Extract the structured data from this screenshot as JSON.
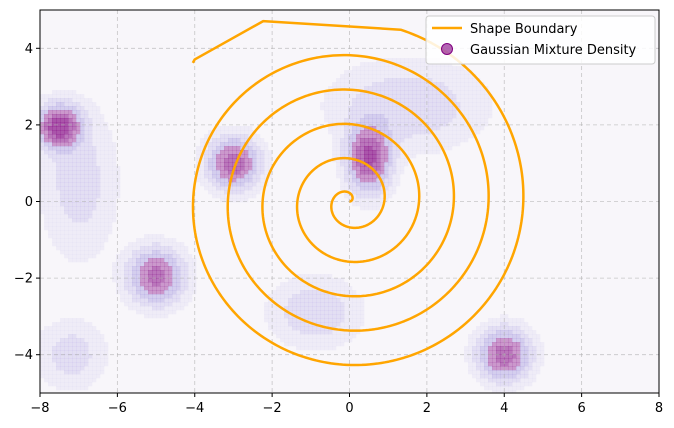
{
  "chart_data": {
    "type": "contour+line",
    "title": "",
    "xlabel": "",
    "ylabel": "",
    "xlim": [
      -8,
      8
    ],
    "ylim": [
      -5,
      5
    ],
    "xticks": [
      -8,
      -6,
      -4,
      -2,
      0,
      2,
      4,
      6,
      8
    ],
    "yticks": [
      -4,
      -2,
      0,
      2,
      4
    ],
    "xtick_labels": [
      "−8",
      "−6",
      "−4",
      "−2",
      "0",
      "2",
      "4",
      "6",
      "8"
    ],
    "ytick_labels": [
      "−4",
      "−2",
      "0",
      "2",
      "4"
    ],
    "grid": true,
    "legend_position": "top-right",
    "series": [
      {
        "name": "Shape Boundary",
        "type": "line",
        "color": "#FFA500",
        "spiral": {
          "center": [
            0,
            0
          ],
          "a": 0.0,
          "b": 0.143,
          "theta_max": 32.7
        },
        "tail": [
          [
            -2.23,
            4.71
          ],
          [
            -4.0,
            3.71
          ],
          [
            -4.05,
            3.62
          ]
        ]
      },
      {
        "name": "Gaussian Mixture Density",
        "type": "contour",
        "color": "#800080",
        "components": [
          {
            "mean": [
              -7.5,
              1.95
            ],
            "sigma": [
              0.35,
              0.35
            ],
            "weight": 1.0
          },
          {
            "mean": [
              -3.0,
              1.0
            ],
            "sigma": [
              0.42,
              0.42
            ],
            "weight": 0.75
          },
          {
            "mean": [
              -5.0,
              -1.95
            ],
            "sigma": [
              0.45,
              0.45
            ],
            "weight": 0.7
          },
          {
            "mean": [
              0.5,
              1.15
            ],
            "sigma": [
              0.35,
              0.55
            ],
            "weight": 0.9
          },
          {
            "mean": [
              4.0,
              -4.0
            ],
            "sigma": [
              0.42,
              0.42
            ],
            "weight": 0.75
          },
          {
            "mean": [
              -0.9,
              -2.9
            ],
            "sigma": [
              0.7,
              0.55
            ],
            "weight": 0.22
          },
          {
            "mean": [
              -7.2,
              -4.0
            ],
            "sigma": [
              0.55,
              0.55
            ],
            "weight": 0.18
          },
          {
            "mean": [
              1.5,
              2.5
            ],
            "sigma": [
              1.2,
              0.7
            ],
            "weight": 0.22
          },
          {
            "mean": [
              -7.0,
              0.5
            ],
            "sigma": [
              0.6,
              1.2
            ],
            "weight": 0.18
          }
        ]
      }
    ]
  }
}
